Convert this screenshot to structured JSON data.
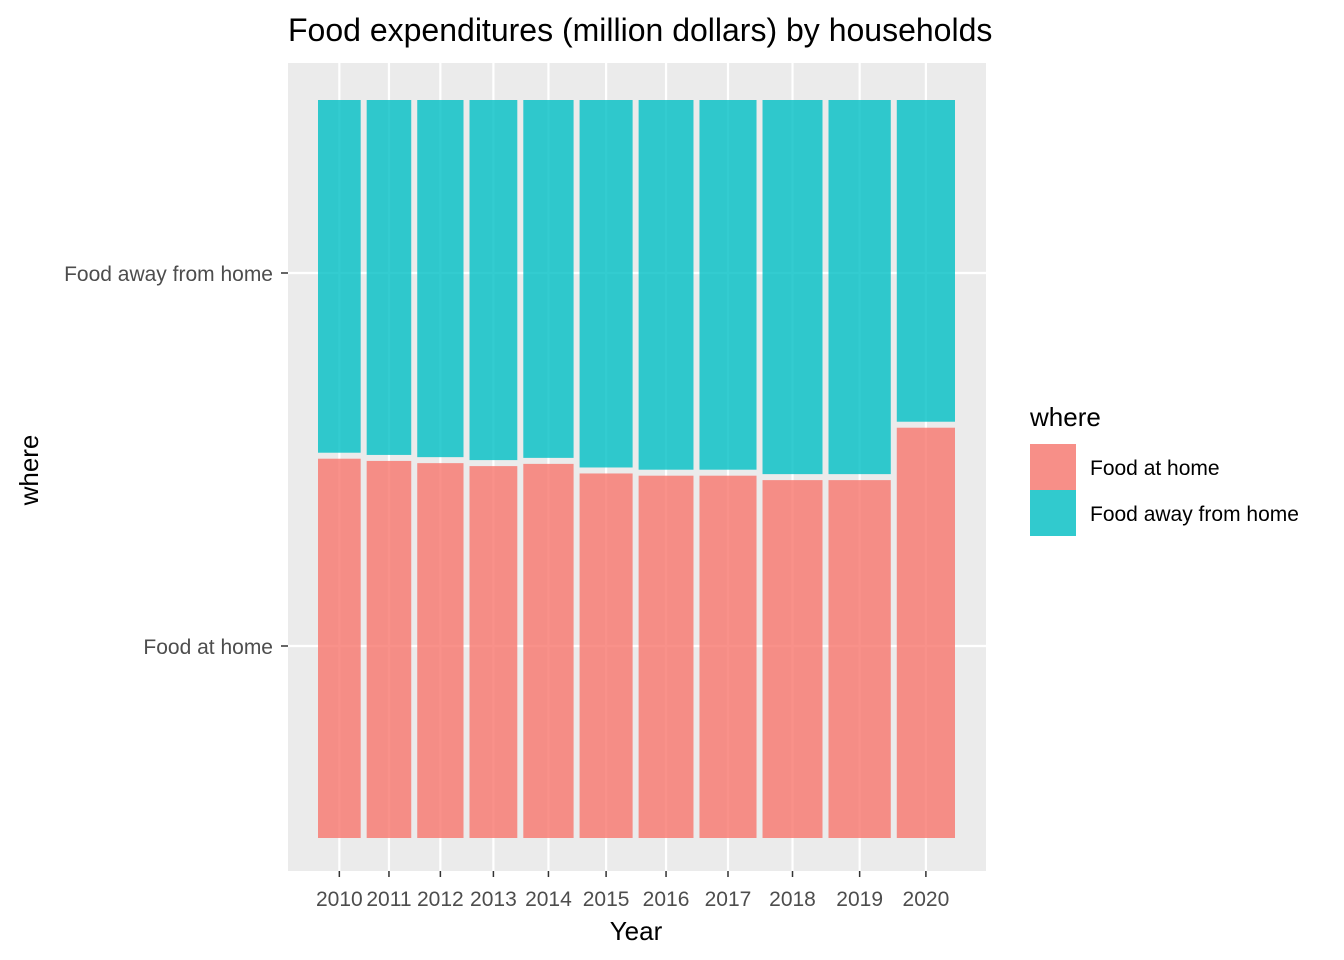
{
  "chart_data": {
    "type": "bar",
    "stacked": true,
    "position": "fill",
    "title": "Food expenditures (million dollars) by households",
    "xlabel": "Year",
    "ylabel": "where",
    "categories": [
      "2010",
      "2011",
      "2012",
      "2013",
      "2014",
      "2015",
      "2016",
      "2017",
      "2018",
      "2019",
      "2020"
    ],
    "bar_width_weights": [
      725,
      757,
      786,
      812,
      854,
      901,
      932,
      969,
      1019,
      1058,
      989
    ],
    "series": [
      {
        "name": "Food at home",
        "color": "#F8766D",
        "values": [
          0.518,
          0.515,
          0.512,
          0.508,
          0.511,
          0.498,
          0.495,
          0.495,
          0.489,
          0.489,
          0.56
        ]
      },
      {
        "name": "Food away from home",
        "color": "#00BFC4",
        "values": [
          0.482,
          0.485,
          0.488,
          0.492,
          0.489,
          0.502,
          0.505,
          0.505,
          0.511,
          0.511,
          0.44
        ]
      }
    ],
    "y_tick_labels": [
      "Food at home",
      "Food away from home"
    ],
    "grid": true,
    "legend": {
      "title": "where",
      "position": "right",
      "entries": [
        "Food at home",
        "Food away from home"
      ]
    }
  }
}
